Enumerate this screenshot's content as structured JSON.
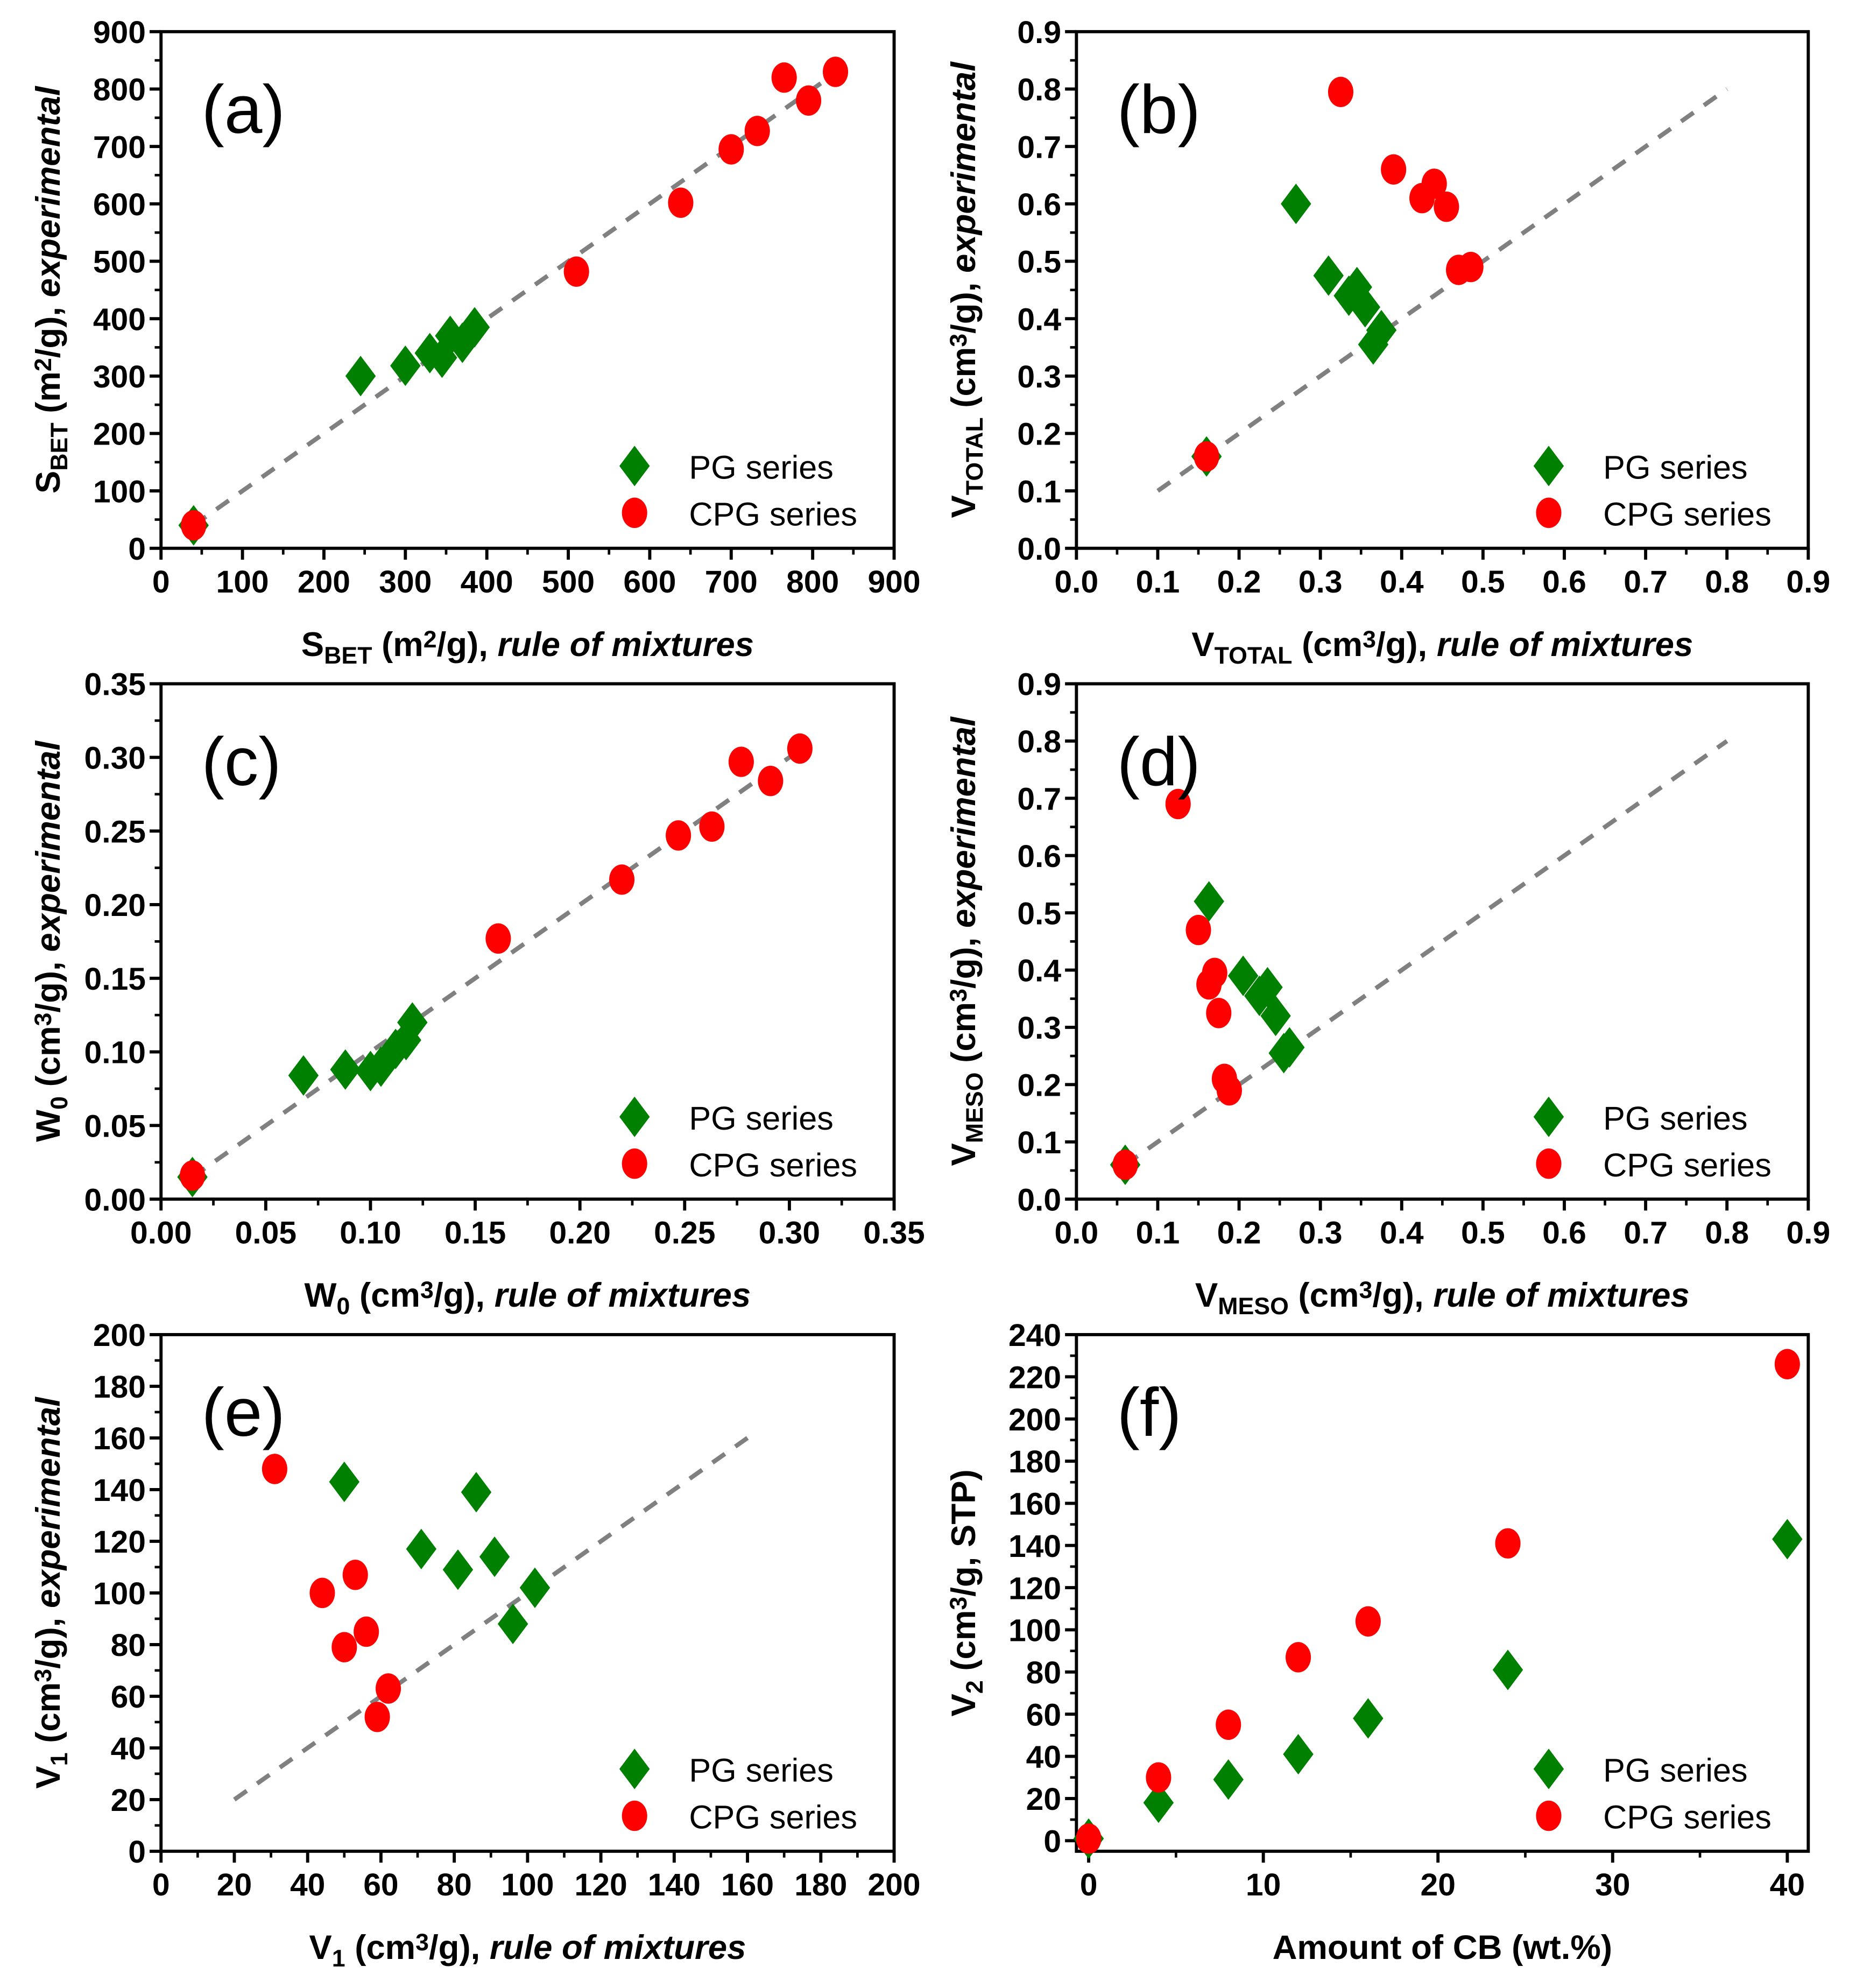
{
  "colors": {
    "pg": "#008000",
    "cpg": "#ff0000",
    "line": "#808080"
  },
  "legend": [
    "PG series",
    "CPG series"
  ],
  "chart_data": [
    {
      "type": "scatter",
      "panel": "(a)",
      "xlabel": [
        {
          "t": "S"
        },
        {
          "t": "BET",
          "s": "sub"
        },
        {
          "t": " (m"
        },
        {
          "t": "2",
          "s": "sup"
        },
        {
          "t": "/g), "
        },
        {
          "t": "rule of mixtures",
          "s": "i"
        }
      ],
      "ylabel": [
        {
          "t": "S"
        },
        {
          "t": "BET",
          "s": "sub"
        },
        {
          "t": " (m"
        },
        {
          "t": "2",
          "s": "sup"
        },
        {
          "t": "/g), "
        },
        {
          "t": "experimental",
          "s": "i"
        }
      ],
      "xlim": [
        0,
        900
      ],
      "ylim": [
        0,
        900
      ],
      "xticks": [
        0,
        100,
        200,
        300,
        400,
        500,
        600,
        700,
        800,
        900
      ],
      "yticks": [
        0,
        100,
        200,
        300,
        400,
        500,
        600,
        700,
        800,
        900
      ],
      "decimals": 0,
      "series": [
        {
          "name": "PG series",
          "x": [
            40,
            245,
            300,
            330,
            345,
            355,
            370,
            385
          ],
          "y": [
            40,
            300,
            318,
            340,
            332,
            370,
            358,
            385
          ]
        },
        {
          "name": "CPG series",
          "x": [
            40,
            510,
            638,
            700,
            732,
            765,
            795,
            828
          ],
          "y": [
            40,
            482,
            602,
            695,
            727,
            820,
            780,
            830
          ]
        }
      ],
      "parity_line": [
        [
          40,
          40
        ],
        [
          830,
          830
        ]
      ]
    },
    {
      "type": "scatter",
      "panel": "(b)",
      "xlabel": [
        {
          "t": "V"
        },
        {
          "t": "TOTAL",
          "s": "sub"
        },
        {
          "t": " (cm"
        },
        {
          "t": "3",
          "s": "sup"
        },
        {
          "t": "/g), "
        },
        {
          "t": "rule of mixtures",
          "s": "i"
        }
      ],
      "ylabel": [
        {
          "t": "V"
        },
        {
          "t": "TOTAL",
          "s": "sub"
        },
        {
          "t": " (cm"
        },
        {
          "t": "3",
          "s": "sup"
        },
        {
          "t": "/g), "
        },
        {
          "t": "experimental",
          "s": "i"
        }
      ],
      "xlim": [
        0,
        0.9
      ],
      "ylim": [
        0,
        0.9
      ],
      "xticks": [
        0,
        0.1,
        0.2,
        0.3,
        0.4,
        0.5,
        0.6,
        0.7,
        0.8,
        0.9
      ],
      "yticks": [
        0,
        0.1,
        0.2,
        0.3,
        0.4,
        0.5,
        0.6,
        0.7,
        0.8,
        0.9
      ],
      "decimals": 1,
      "series": [
        {
          "name": "PG series",
          "x": [
            0.16,
            0.27,
            0.31,
            0.335,
            0.345,
            0.355,
            0.365,
            0.375
          ],
          "y": [
            0.16,
            0.6,
            0.475,
            0.44,
            0.455,
            0.42,
            0.355,
            0.38
          ]
        },
        {
          "name": "CPG series",
          "x": [
            0.16,
            0.325,
            0.39,
            0.425,
            0.44,
            0.455,
            0.47,
            0.485
          ],
          "y": [
            0.16,
            0.795,
            0.66,
            0.61,
            0.635,
            0.595,
            0.485,
            0.49
          ]
        }
      ],
      "parity_line": [
        [
          0.1,
          0.1
        ],
        [
          0.8,
          0.8
        ]
      ]
    },
    {
      "type": "scatter",
      "panel": "(c)",
      "xlabel": [
        {
          "t": "W"
        },
        {
          "t": "0",
          "s": "sub"
        },
        {
          "t": " (cm"
        },
        {
          "t": "3",
          "s": "sup"
        },
        {
          "t": "/g), "
        },
        {
          "t": "rule of mixtures",
          "s": "i"
        }
      ],
      "ylabel": [
        {
          "t": "W"
        },
        {
          "t": "0",
          "s": "sub"
        },
        {
          "t": " (cm"
        },
        {
          "t": "3",
          "s": "sup"
        },
        {
          "t": "/g), "
        },
        {
          "t": "experimental",
          "s": "i"
        }
      ],
      "xlim": [
        0,
        0.35
      ],
      "ylim": [
        0,
        0.35
      ],
      "xticks": [
        0,
        0.05,
        0.1,
        0.15,
        0.2,
        0.25,
        0.3,
        0.35
      ],
      "yticks": [
        0,
        0.05,
        0.1,
        0.15,
        0.2,
        0.25,
        0.3,
        0.35
      ],
      "decimals": 2,
      "series": [
        {
          "name": "PG series",
          "x": [
            0.015,
            0.068,
            0.088,
            0.1,
            0.105,
            0.112,
            0.117,
            0.12
          ],
          "y": [
            0.015,
            0.084,
            0.088,
            0.087,
            0.09,
            0.102,
            0.108,
            0.12
          ]
        },
        {
          "name": "CPG series",
          "x": [
            0.015,
            0.161,
            0.22,
            0.247,
            0.263,
            0.277,
            0.291,
            0.305
          ],
          "y": [
            0.016,
            0.177,
            0.217,
            0.247,
            0.253,
            0.297,
            0.284,
            0.306
          ]
        }
      ],
      "parity_line": [
        [
          0.015,
          0.015
        ],
        [
          0.305,
          0.305
        ]
      ]
    },
    {
      "type": "scatter",
      "panel": "(d)",
      "xlabel": [
        {
          "t": "V"
        },
        {
          "t": "MESO",
          "s": "sub"
        },
        {
          "t": " (cm"
        },
        {
          "t": "3",
          "s": "sup"
        },
        {
          "t": "/g), "
        },
        {
          "t": "rule of mixtures",
          "s": "i"
        }
      ],
      "ylabel": [
        {
          "t": "V"
        },
        {
          "t": "MESO",
          "s": "sub"
        },
        {
          "t": " (cm"
        },
        {
          "t": "3",
          "s": "sup"
        },
        {
          "t": "/g), "
        },
        {
          "t": "experimental",
          "s": "i"
        }
      ],
      "xlim": [
        0,
        0.9
      ],
      "ylim": [
        0,
        0.9
      ],
      "xticks": [
        0,
        0.1,
        0.2,
        0.3,
        0.4,
        0.5,
        0.6,
        0.7,
        0.8,
        0.9
      ],
      "yticks": [
        0,
        0.1,
        0.2,
        0.3,
        0.4,
        0.5,
        0.6,
        0.7,
        0.8,
        0.9
      ],
      "decimals": 1,
      "series": [
        {
          "name": "PG series",
          "x": [
            0.06,
            0.163,
            0.205,
            0.225,
            0.235,
            0.245,
            0.255,
            0.262
          ],
          "y": [
            0.06,
            0.52,
            0.39,
            0.355,
            0.37,
            0.32,
            0.255,
            0.265
          ]
        },
        {
          "name": "CPG series",
          "x": [
            0.06,
            0.125,
            0.15,
            0.163,
            0.17,
            0.175,
            0.182,
            0.188
          ],
          "y": [
            0.06,
            0.69,
            0.47,
            0.375,
            0.395,
            0.325,
            0.21,
            0.19
          ]
        }
      ],
      "parity_line": [
        [
          0.06,
          0.06
        ],
        [
          0.8,
          0.8
        ]
      ]
    },
    {
      "type": "scatter",
      "panel": "(e)",
      "xlabel": [
        {
          "t": "V"
        },
        {
          "t": "1",
          "s": "sub"
        },
        {
          "t": " (cm"
        },
        {
          "t": "3",
          "s": "sup"
        },
        {
          "t": "/g), "
        },
        {
          "t": "rule of mixtures",
          "s": "i"
        }
      ],
      "ylabel": [
        {
          "t": "V"
        },
        {
          "t": "1",
          "s": "sub"
        },
        {
          "t": " (cm"
        },
        {
          "t": "3",
          "s": "sup"
        },
        {
          "t": "/g), "
        },
        {
          "t": "experimental",
          "s": "i"
        }
      ],
      "xlim": [
        0,
        200
      ],
      "ylim": [
        0,
        200
      ],
      "xticks": [
        0,
        20,
        40,
        60,
        80,
        100,
        120,
        140,
        160,
        180,
        200
      ],
      "yticks": [
        0,
        20,
        40,
        60,
        80,
        100,
        120,
        140,
        160,
        180,
        200
      ],
      "decimals": 0,
      "series": [
        {
          "name": "PG series",
          "x": [
            50,
            71,
            81,
            86,
            91,
            96,
            102
          ],
          "y": [
            143,
            117,
            109,
            139,
            114,
            88,
            102
          ]
        },
        {
          "name": "CPG series",
          "x": [
            31,
            44,
            50,
            53,
            56,
            59,
            62
          ],
          "y": [
            148,
            100,
            79,
            107,
            85,
            52,
            63
          ]
        }
      ],
      "parity_line": [
        [
          20,
          20
        ],
        [
          160,
          160
        ]
      ]
    },
    {
      "type": "scatter",
      "panel": "(f)",
      "xlabel": [
        {
          "t": "Amount of CB (wt.%)"
        }
      ],
      "ylabel": [
        {
          "t": "V"
        },
        {
          "t": "2",
          "s": "sub"
        },
        {
          "t": " (cm"
        },
        {
          "t": "3",
          "s": "sup"
        },
        {
          "t": "/g, STP)"
        }
      ],
      "xlim": [
        -0.7,
        41.2
      ],
      "ylim": [
        -5,
        240
      ],
      "xticks": [
        0,
        10,
        20,
        30,
        40
      ],
      "yticks": [
        0,
        20,
        40,
        60,
        80,
        100,
        120,
        140,
        160,
        180,
        200,
        220,
        240
      ],
      "decimals": 0,
      "series": [
        {
          "name": "PG series",
          "x": [
            0,
            4,
            8,
            12,
            16,
            24,
            40
          ],
          "y": [
            1,
            18,
            29,
            41,
            58,
            81,
            143
          ]
        },
        {
          "name": "CPG series",
          "x": [
            0,
            4,
            8,
            12,
            16,
            24,
            40
          ],
          "y": [
            1,
            30,
            55,
            87,
            104,
            141,
            226
          ]
        }
      ],
      "parity_line": null
    }
  ]
}
